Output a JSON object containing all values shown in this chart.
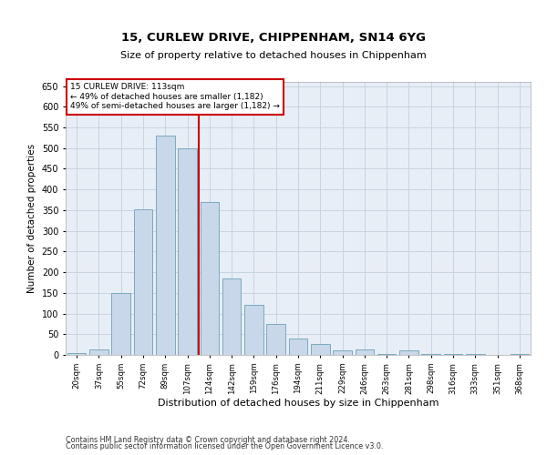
{
  "title1": "15, CURLEW DRIVE, CHIPPENHAM, SN14 6YG",
  "title2": "Size of property relative to detached houses in Chippenham",
  "xlabel": "Distribution of detached houses by size in Chippenham",
  "ylabel": "Number of detached properties",
  "categories": [
    "20sqm",
    "37sqm",
    "55sqm",
    "72sqm",
    "89sqm",
    "107sqm",
    "124sqm",
    "142sqm",
    "159sqm",
    "176sqm",
    "194sqm",
    "211sqm",
    "229sqm",
    "246sqm",
    "263sqm",
    "281sqm",
    "298sqm",
    "316sqm",
    "333sqm",
    "351sqm",
    "368sqm"
  ],
  "values": [
    5,
    13,
    150,
    352,
    530,
    500,
    370,
    185,
    122,
    75,
    40,
    27,
    10,
    13,
    2,
    10,
    2,
    2,
    3,
    1,
    3
  ],
  "bar_color": "#c8d8ea",
  "bar_edge_color": "#7aaabf",
  "property_line_x": 5.5,
  "annotation_line1": "15 CURLEW DRIVE: 113sqm",
  "annotation_line2": "← 49% of detached houses are smaller (1,182)",
  "annotation_line3": "49% of semi-detached houses are larger (1,182) →",
  "annotation_box_color": "#ffffff",
  "annotation_box_edge": "#cc0000",
  "vline_color": "#cc0000",
  "ylim": [
    0,
    660
  ],
  "yticks": [
    0,
    50,
    100,
    150,
    200,
    250,
    300,
    350,
    400,
    450,
    500,
    550,
    600,
    650
  ],
  "grid_color": "#c8d4e0",
  "background_color": "#e8eef6",
  "footer1": "Contains HM Land Registry data © Crown copyright and database right 2024.",
  "footer2": "Contains public sector information licensed under the Open Government Licence v3.0."
}
